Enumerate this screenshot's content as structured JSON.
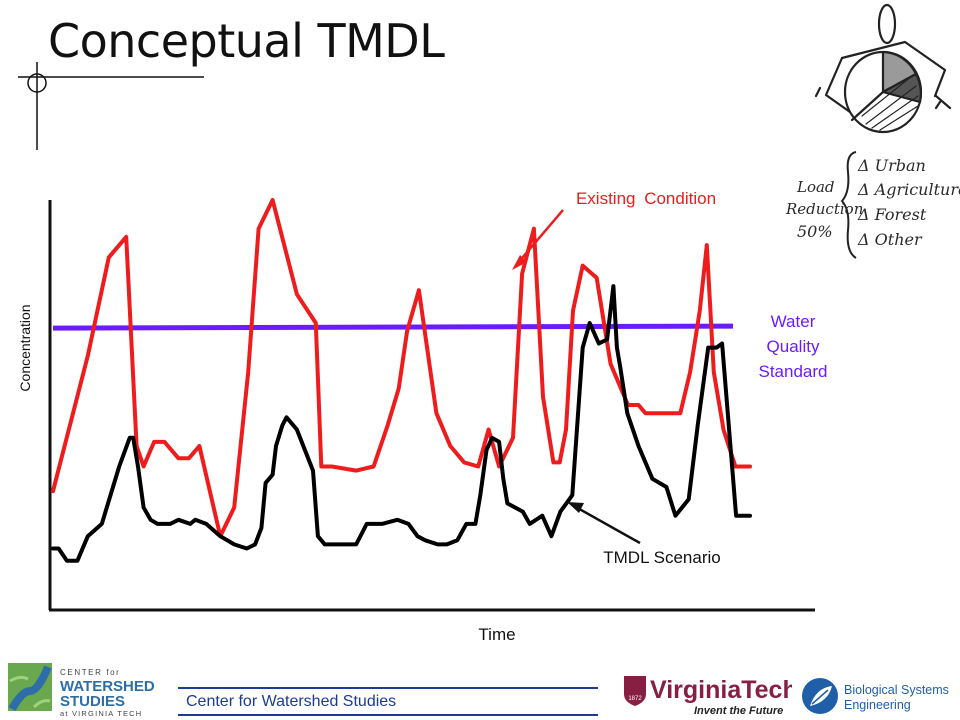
{
  "slide": {
    "title": "Conceptual TMDL"
  },
  "chart_data": {
    "type": "line",
    "xlabel": "Time",
    "ylabel": "Concentration",
    "xlim": [
      0,
      100
    ],
    "ylim": [
      0,
      100
    ],
    "grid": false,
    "series": [
      {
        "name": "Existing Condition",
        "color": "#ee1c1c",
        "x": [
          0,
          5,
          8,
          10.5,
          12,
          13,
          14.5,
          16,
          18,
          19.5,
          21,
          24,
          26,
          28,
          29.5,
          31.5,
          35,
          37.7,
          38.5,
          40,
          43.5,
          46,
          48,
          49.6,
          50.8,
          52.5,
          55,
          57,
          59,
          61,
          62.5,
          64,
          66,
          67.3,
          69,
          70.3,
          71.8,
          72.7,
          73.6,
          74.6,
          76,
          78,
          80,
          82.5,
          84,
          85,
          86.5,
          88,
          90,
          91.4,
          92.8,
          93.8,
          94.8,
          96.2,
          97.9,
          100
        ],
        "y": [
          29,
          62,
          86,
          91,
          40,
          35,
          41,
          41,
          37,
          37,
          40,
          18,
          25,
          58,
          93,
          100,
          77,
          70,
          35,
          35,
          34,
          35,
          45,
          54,
          68,
          78,
          48,
          40,
          36,
          35,
          44,
          35,
          42,
          82,
          93,
          52,
          36,
          36,
          44,
          73,
          84,
          81,
          60,
          50,
          50,
          48,
          48,
          48,
          48,
          58,
          73,
          89,
          58,
          44,
          35,
          35
        ]
      },
      {
        "name": "TMDL Scenario",
        "color": "#000000",
        "x": [
          0,
          0.8,
          2,
          3.5,
          5,
          7,
          9.5,
          11,
          11.5,
          12.2,
          13,
          14,
          15,
          16.8,
          18,
          19.7,
          20.4,
          22,
          24,
          26,
          27.8,
          29,
          29.9,
          30.5,
          31.5,
          32,
          32.9,
          33.5,
          35,
          37.3,
          38,
          39,
          40.4,
          42,
          43.5,
          45,
          47.2,
          49.4,
          51,
          52.3,
          53.4,
          55.2,
          56.5,
          58,
          59.3,
          60.6,
          61.3,
          62.2,
          63,
          64,
          64.6,
          65.2,
          67.4,
          68.4,
          70.2,
          71.5,
          72.8,
          74.5,
          76,
          77,
          78.3,
          79.5,
          80.4,
          80.9,
          81.4,
          82.4,
          84,
          86,
          88,
          89.3,
          91.2,
          92.5,
          94,
          95.2,
          96,
          98,
          100
        ],
        "y": [
          15,
          15,
          12,
          12,
          18,
          21,
          35,
          42,
          42,
          35,
          25,
          22,
          21,
          21,
          22,
          21,
          22,
          21,
          18,
          16,
          15,
          16,
          20,
          31,
          33,
          40,
          45,
          47,
          44,
          34,
          18,
          16,
          16,
          16,
          16,
          21,
          21,
          22,
          21,
          18,
          17,
          16,
          16,
          17,
          21,
          21,
          28,
          39,
          42,
          41,
          32,
          26,
          24,
          21,
          23,
          18,
          24,
          28,
          64,
          70,
          65,
          66,
          79,
          64,
          59,
          48,
          40,
          32,
          30,
          23,
          27,
          45,
          64,
          64,
          65,
          23,
          23
        ]
      }
    ],
    "reference_line": {
      "name": "Water Quality Standard",
      "color": "#6b1cff",
      "y": 69
    },
    "annotations": [
      {
        "text": "Existing Condition",
        "color": "#ee1c1c",
        "points_to": "Existing Condition"
      },
      {
        "text": "TMDL Scenario",
        "color": "#111111",
        "points_to": "TMDL Scenario"
      },
      {
        "lines": [
          "Water",
          "Quality",
          "Standard"
        ],
        "color": "#6b1cff",
        "points_to": "Water Quality Standard"
      }
    ]
  },
  "sketch": {
    "label_lines": [
      "Load",
      "Reduction",
      "50%"
    ],
    "items": [
      "Δ Urban",
      "Δ Agriculture",
      "Δ Forest",
      "Δ Other"
    ]
  },
  "footer": {
    "text": "Center for Watershed Studies",
    "cws_logo": {
      "line1": "CENTER for",
      "line2": "WATERSHED",
      "line3": "STUDIES",
      "line4": "at VIRGINIA TECH"
    },
    "vt_logo": {
      "line1": "VirginiaTech",
      "line2": "Invent the Future",
      "badge": "1872"
    },
    "bse_logo": {
      "line1": "Biological Systems",
      "line2": "Engineering"
    }
  }
}
